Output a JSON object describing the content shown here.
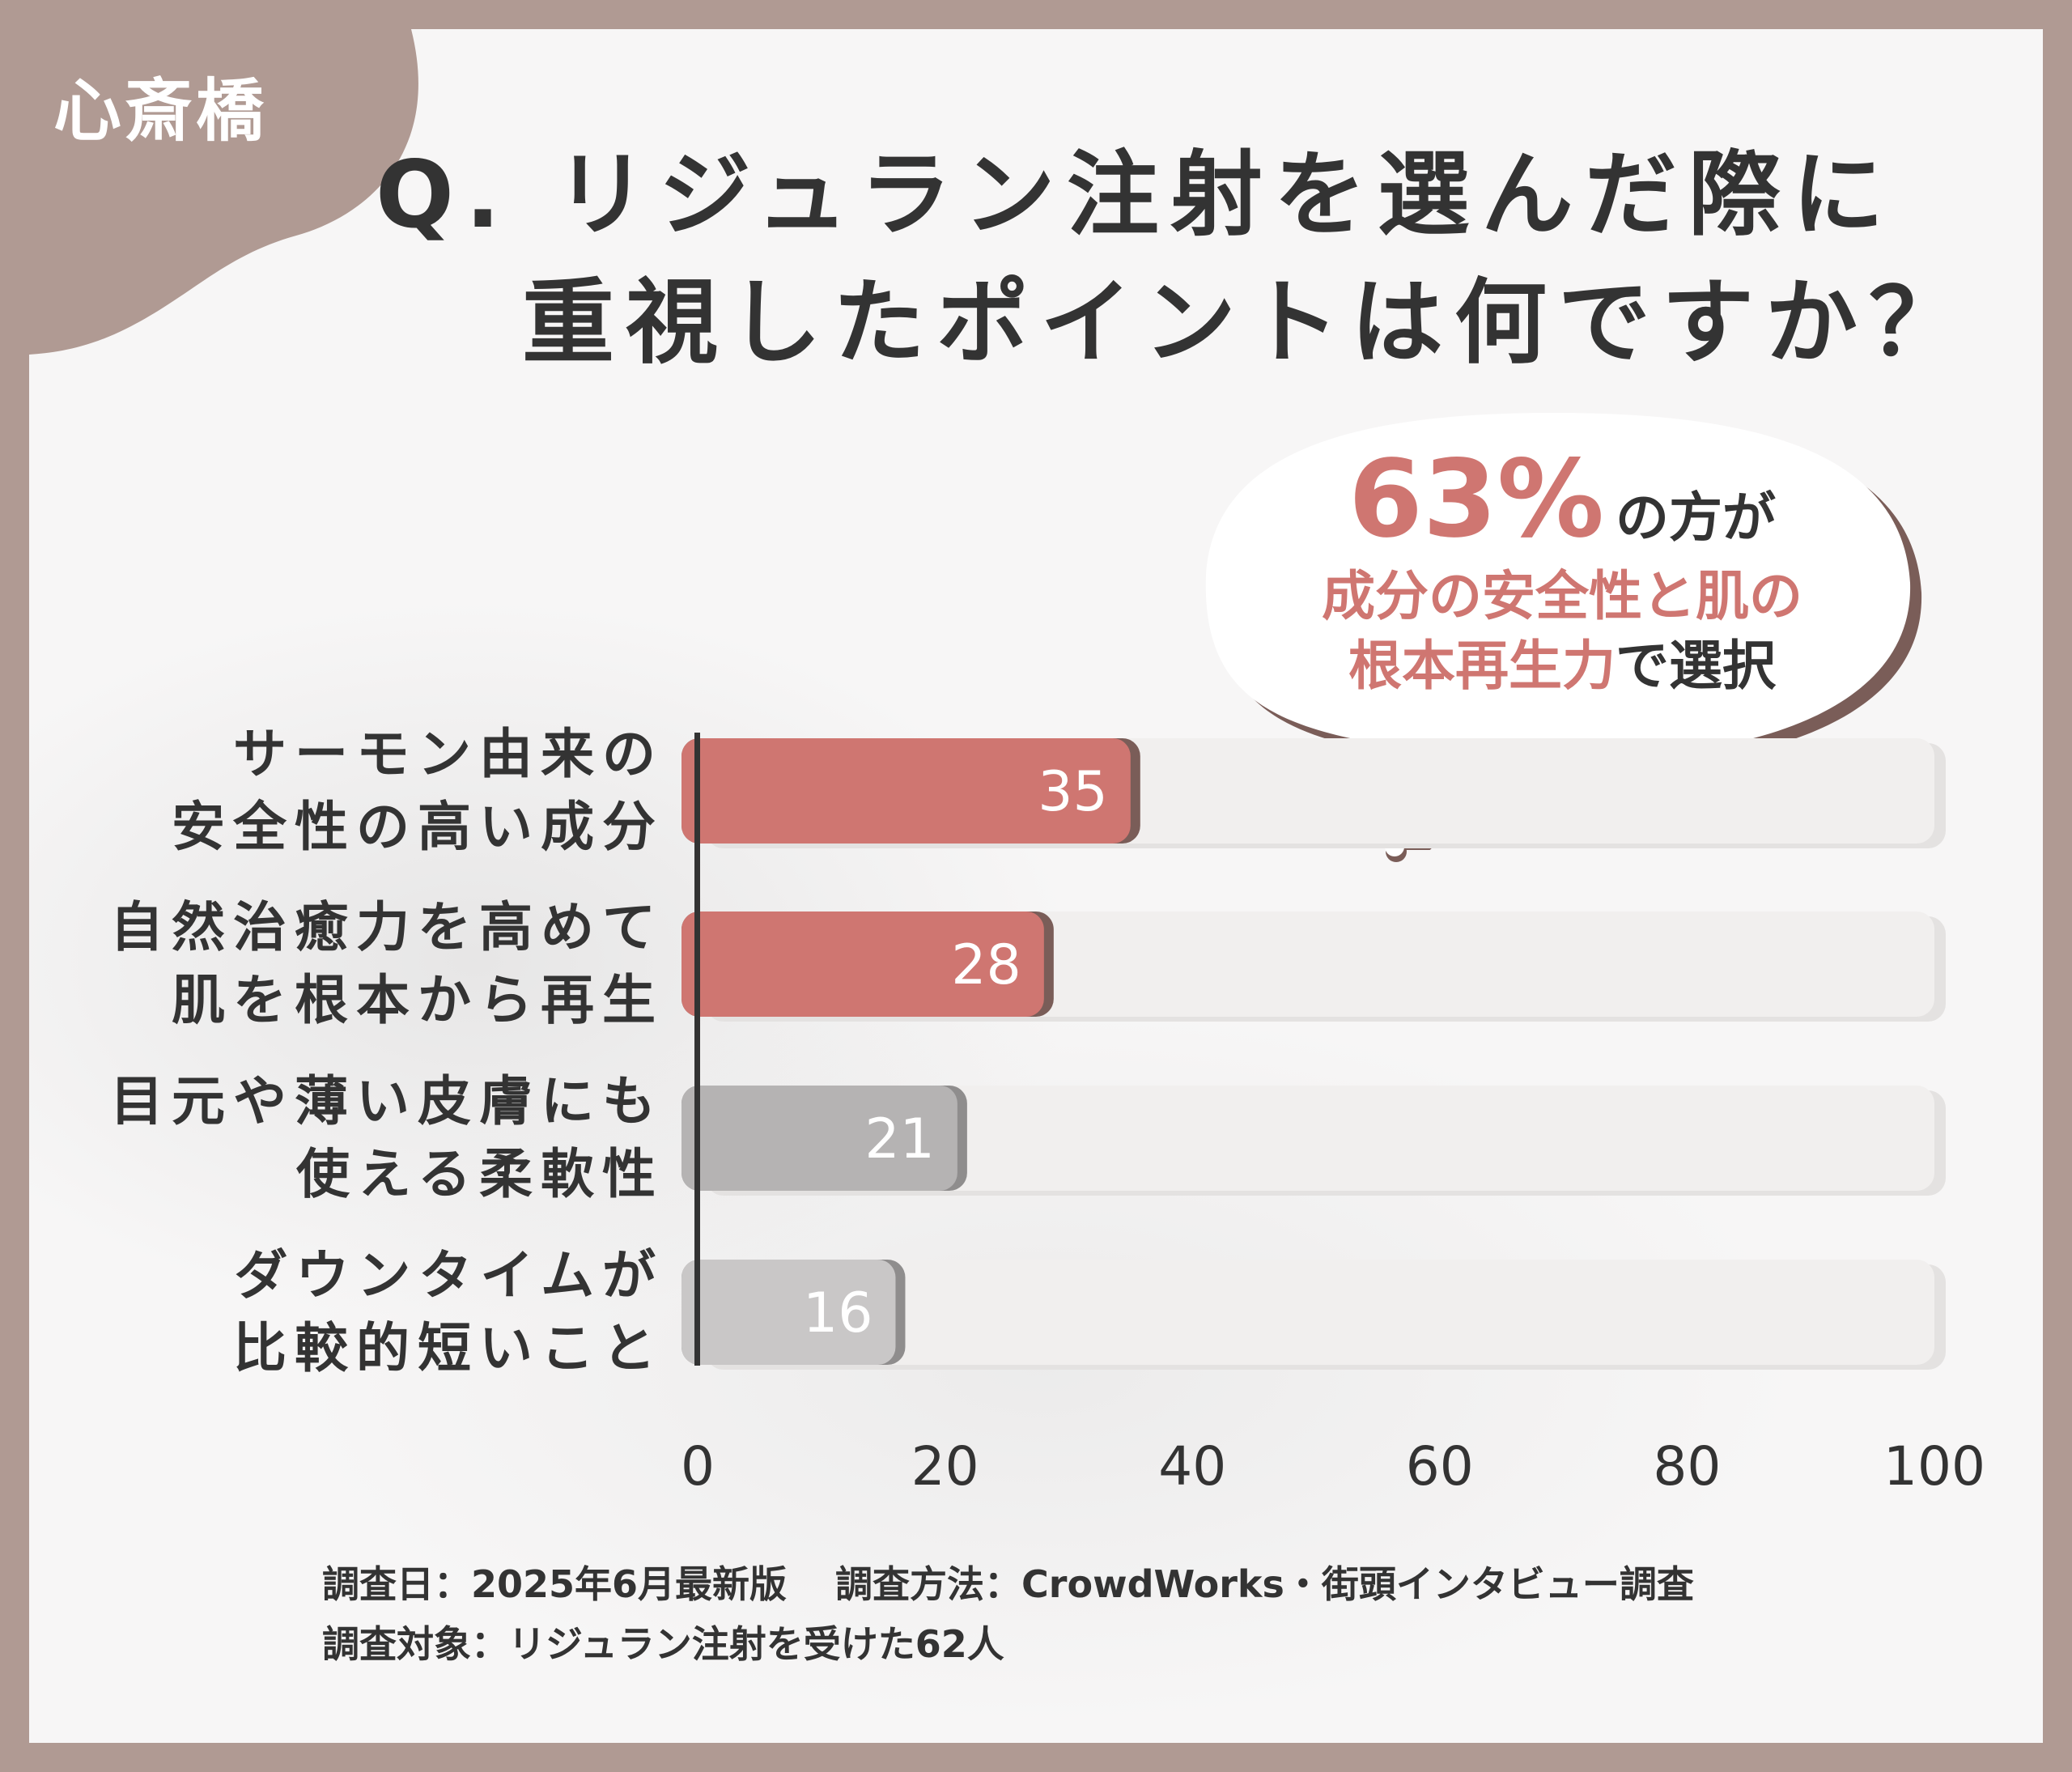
{
  "location_tag": "心斎橋",
  "title": {
    "line1": "Q. リジュラン注射を選んだ際に",
    "line2": "重視したポイントは何ですか？"
  },
  "callout": {
    "percent": "63%",
    "suffix": "の方が",
    "line2": "成分の安全性と肌の",
    "line3_accent": "根本再生力",
    "line3_tail": "で選択"
  },
  "chart_data": {
    "type": "bar",
    "orientation": "horizontal",
    "categories": [
      [
        "サーモン由来の",
        "安全性の高い成分"
      ],
      [
        "自然治癒力を高めて",
        "肌を根本から再生"
      ],
      [
        "目元や薄い皮膚にも",
        "使える柔軟性"
      ],
      [
        "ダウンタイムが",
        "比較的短いこと"
      ]
    ],
    "values": [
      35,
      28,
      21,
      16
    ],
    "data_labels": [
      "35",
      "28",
      "21",
      "16"
    ],
    "xlim": [
      0,
      100
    ],
    "x_ticks": [
      "0",
      "20",
      "40",
      "60",
      "80",
      "100"
    ],
    "grid": false,
    "colors": {
      "highlight": "#cf7671",
      "highlight_shadow": "#7a5d58",
      "mid_gray": "#b5b3b3",
      "light_gray": "#c9c7c7",
      "gray_shadow": "#8f8d8d",
      "track": "#f1efee",
      "axis": "#333333"
    }
  },
  "footer": {
    "date": "調査日：2025年6月最新版",
    "method": "調査方法：CrowdWorks・街頭インタビュー調査",
    "target": "調査対象：リジュラン注射を受けた62人"
  }
}
